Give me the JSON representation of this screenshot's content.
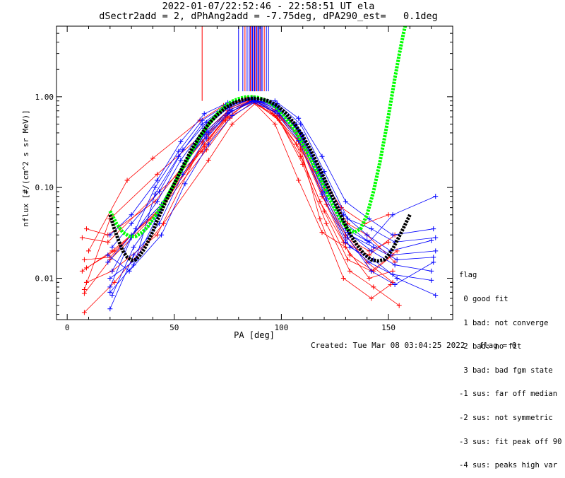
{
  "header": {
    "line1": "2022-01-07/22:52:46 - 22:58:51 UT ela",
    "line2": "dSectr2add = 2, dPhAng2add = -7.75deg, dPA290_est=   0.1deg"
  },
  "legend": {
    "title": "flag",
    "items": [
      " 0 good fit",
      " 1 bad: not converge",
      " 2 bad: no fit",
      " 3 bad: bad fgm state",
      "-1 sus: far off median",
      "-2 sus: not symmetric",
      "-3 sus: fit peak off 90",
      "-4 sus: peaks high var"
    ]
  },
  "footer": {
    "created": "Created: Tue Mar 08 03:04:25 2022",
    "flag": "flag = 0"
  },
  "colors": {
    "red": "#ff0000",
    "blue": "#0000ff",
    "green": "#00ff00",
    "black": "#000000"
  },
  "chart_data": {
    "type": "line",
    "xlabel": "PA [deg]",
    "ylabel": "nflux [#/(cm^2 s sr MeV)]",
    "xlim": [
      -5,
      180
    ],
    "ylim": [
      0.0035,
      6.0
    ],
    "ylog": true,
    "xticks": [
      0,
      50,
      100,
      150
    ],
    "xtick_labels": [
      "0",
      "50",
      "100",
      "150"
    ],
    "yticks": [
      0.01,
      0.1,
      1.0
    ],
    "ytick_labels": [
      "0.01",
      "0.10",
      "1.00"
    ],
    "spike_markers_pa": [
      63,
      80,
      82,
      83,
      84,
      85,
      85.5,
      86,
      86.5,
      87,
      87.5,
      88,
      88.5,
      89,
      89.5,
      90,
      90.5,
      91,
      92,
      93,
      94
    ],
    "series": [
      {
        "color": "red",
        "x": [
          8,
          20,
          42,
          64,
          75,
          86,
          97,
          108,
          119,
          130,
          140,
          152
        ],
        "y": [
          0.0075,
          0.045,
          0.14,
          0.4,
          0.7,
          0.93,
          0.72,
          0.35,
          0.09,
          0.03,
          0.015,
          0.009
        ]
      },
      {
        "color": "red",
        "x": [
          9,
          19,
          41,
          63,
          74,
          85,
          96,
          107,
          118,
          129,
          141,
          153
        ],
        "y": [
          0.035,
          0.03,
          0.07,
          0.32,
          0.62,
          0.9,
          0.65,
          0.3,
          0.07,
          0.025,
          0.018,
          0.03
        ]
      },
      {
        "color": "red",
        "x": [
          7,
          21,
          43,
          65,
          76,
          87,
          98,
          109,
          120,
          131,
          142,
          154
        ],
        "y": [
          0.012,
          0.02,
          0.055,
          0.26,
          0.58,
          0.88,
          0.6,
          0.22,
          0.055,
          0.016,
          0.012,
          0.02
        ]
      },
      {
        "color": "red",
        "x": [
          8,
          22,
          45,
          66,
          77,
          88,
          99,
          110,
          121,
          132,
          143,
          155
        ],
        "y": [
          0.0042,
          0.009,
          0.04,
          0.2,
          0.5,
          0.85,
          0.55,
          0.18,
          0.04,
          0.012,
          0.008,
          0.005
        ]
      },
      {
        "color": "red",
        "x": [
          10,
          28,
          40,
          62,
          73,
          84,
          95,
          106,
          117,
          128,
          139,
          150
        ],
        "y": [
          0.02,
          0.12,
          0.21,
          0.55,
          0.8,
          0.95,
          0.85,
          0.5,
          0.15,
          0.06,
          0.04,
          0.05
        ]
      },
      {
        "color": "red",
        "x": [
          8,
          20,
          44,
          64,
          75,
          86,
          97,
          108,
          119,
          130,
          141,
          152
        ],
        "y": [
          0.016,
          0.017,
          0.065,
          0.3,
          0.6,
          0.92,
          0.5,
          0.12,
          0.032,
          0.022,
          0.01,
          0.012
        ]
      },
      {
        "color": "red",
        "x": [
          9,
          21,
          42,
          65,
          76,
          87,
          98,
          109,
          120,
          131,
          140,
          153
        ],
        "y": [
          0.009,
          0.012,
          0.03,
          0.38,
          0.75,
          0.97,
          0.6,
          0.26,
          0.1,
          0.04,
          0.03,
          0.015
        ]
      },
      {
        "color": "red",
        "x": [
          7,
          19,
          43,
          63,
          74,
          85,
          96,
          107,
          118,
          129,
          142,
          151
        ],
        "y": [
          0.028,
          0.025,
          0.09,
          0.25,
          0.55,
          0.91,
          0.7,
          0.4,
          0.045,
          0.01,
          0.006,
          0.0085
        ]
      },
      {
        "color": "red",
        "x": [
          8,
          20,
          41,
          64,
          75,
          86,
          97,
          108,
          119,
          130,
          141,
          150
        ],
        "y": [
          0.0068,
          0.016,
          0.05,
          0.28,
          0.65,
          0.92,
          0.62,
          0.32,
          0.08,
          0.028,
          0.02,
          0.025
        ]
      },
      {
        "color": "red",
        "x": [
          9,
          22,
          44,
          66,
          77,
          88,
          99,
          110,
          121,
          132,
          143,
          152
        ],
        "y": [
          0.013,
          0.02,
          0.06,
          0.35,
          0.7,
          0.9,
          0.62,
          0.28,
          0.065,
          0.018,
          0.012,
          0.018
        ]
      },
      {
        "color": "blue",
        "x": [
          20,
          30,
          42,
          53,
          64,
          75,
          86,
          97,
          108,
          119,
          130,
          141,
          152,
          172
        ],
        "y": [
          0.008,
          0.028,
          0.07,
          0.2,
          0.45,
          0.75,
          0.95,
          0.8,
          0.42,
          0.12,
          0.035,
          0.025,
          0.05,
          0.08
        ]
      },
      {
        "color": "blue",
        "x": [
          20,
          31,
          43,
          54,
          65,
          76,
          87,
          98,
          109,
          120,
          131,
          142,
          153,
          171
        ],
        "y": [
          0.0046,
          0.018,
          0.04,
          0.14,
          0.35,
          0.68,
          0.9,
          0.7,
          0.35,
          0.09,
          0.028,
          0.012,
          0.0085,
          0.015
        ]
      },
      {
        "color": "blue",
        "x": [
          21,
          32,
          41,
          52,
          63,
          74,
          85,
          96,
          107,
          118,
          129,
          140,
          151,
          170
        ],
        "y": [
          0.012,
          0.035,
          0.1,
          0.25,
          0.55,
          0.8,
          0.93,
          0.85,
          0.5,
          0.16,
          0.05,
          0.03,
          0.02,
          0.026
        ]
      },
      {
        "color": "blue",
        "x": [
          19,
          29,
          44,
          55,
          66,
          77,
          88,
          99,
          110,
          121,
          132,
          143,
          154,
          172
        ],
        "y": [
          0.018,
          0.012,
          0.03,
          0.11,
          0.3,
          0.62,
          0.88,
          0.65,
          0.3,
          0.075,
          0.022,
          0.016,
          0.01,
          0.0065
        ]
      },
      {
        "color": "blue",
        "x": [
          20,
          30,
          42,
          53,
          64,
          75,
          86,
          97,
          108,
          119,
          130,
          141,
          152,
          171
        ],
        "y": [
          0.03,
          0.05,
          0.12,
          0.32,
          0.65,
          0.86,
          0.97,
          0.9,
          0.58,
          0.22,
          0.07,
          0.045,
          0.03,
          0.035
        ]
      },
      {
        "color": "blue",
        "x": [
          21,
          31,
          43,
          54,
          65,
          76,
          87,
          98,
          109,
          120,
          131,
          142,
          153,
          170
        ],
        "y": [
          0.0065,
          0.022,
          0.055,
          0.17,
          0.42,
          0.72,
          0.92,
          0.76,
          0.4,
          0.11,
          0.032,
          0.02,
          0.014,
          0.012
        ]
      },
      {
        "color": "blue",
        "x": [
          20,
          32,
          41,
          52,
          63,
          74,
          85,
          96,
          107,
          118,
          129,
          140,
          151,
          172
        ],
        "y": [
          0.01,
          0.016,
          0.085,
          0.22,
          0.5,
          0.78,
          0.94,
          0.82,
          0.46,
          0.14,
          0.042,
          0.026,
          0.018,
          0.02
        ]
      },
      {
        "color": "blue",
        "x": [
          19,
          30,
          44,
          55,
          66,
          77,
          88,
          99,
          110,
          121,
          132,
          143,
          154,
          171
        ],
        "y": [
          0.015,
          0.03,
          0.065,
          0.19,
          0.4,
          0.7,
          0.9,
          0.72,
          0.38,
          0.1,
          0.03,
          0.022,
          0.016,
          0.017
        ]
      },
      {
        "color": "blue",
        "x": [
          20,
          31,
          42,
          53,
          64,
          75,
          86,
          97,
          108,
          119,
          130,
          141,
          152,
          170
        ],
        "y": [
          0.007,
          0.014,
          0.048,
          0.15,
          0.38,
          0.66,
          0.89,
          0.68,
          0.33,
          0.085,
          0.025,
          0.015,
          0.011,
          0.0095
        ]
      },
      {
        "color": "blue",
        "x": [
          21,
          30,
          43,
          54,
          65,
          76,
          87,
          98,
          109,
          120,
          131,
          142,
          153,
          172
        ],
        "y": [
          0.022,
          0.04,
          0.09,
          0.26,
          0.52,
          0.8,
          0.96,
          0.84,
          0.5,
          0.15,
          0.045,
          0.035,
          0.025,
          0.028
        ]
      }
    ],
    "fits": [
      {
        "name": "",
        "color": "green",
        "x": [
          20,
          23,
          26,
          29,
          32,
          35,
          38,
          41,
          44,
          47,
          50,
          53,
          56,
          59,
          62,
          65,
          68,
          71,
          74,
          77,
          80,
          83,
          86,
          89,
          92,
          95,
          98,
          101,
          104,
          107,
          110,
          113,
          116,
          119,
          122,
          125,
          128,
          131,
          134,
          137,
          140,
          143,
          146,
          149,
          151,
          153,
          155,
          157,
          159,
          161,
          163
        ],
        "y": [
          0.055,
          0.04,
          0.032,
          0.029,
          0.029,
          0.032,
          0.038,
          0.048,
          0.062,
          0.082,
          0.11,
          0.15,
          0.2,
          0.27,
          0.36,
          0.46,
          0.57,
          0.69,
          0.8,
          0.89,
          0.95,
          0.99,
          1.0,
          0.98,
          0.93,
          0.85,
          0.75,
          0.63,
          0.51,
          0.4,
          0.3,
          0.22,
          0.16,
          0.115,
          0.08,
          0.058,
          0.043,
          0.035,
          0.032,
          0.035,
          0.05,
          0.09,
          0.19,
          0.45,
          0.85,
          1.6,
          2.9,
          5.0,
          8.0,
          13.0,
          20.0
        ]
      },
      {
        "name": "",
        "color": "black",
        "x": [
          20,
          22,
          24,
          26,
          28,
          30,
          32,
          34,
          36,
          38,
          40,
          42,
          44,
          46,
          48,
          50,
          54,
          58,
          62,
          66,
          70,
          74,
          78,
          82,
          86,
          90,
          94,
          98,
          102,
          106,
          110,
          114,
          118,
          122,
          126,
          130,
          133,
          136,
          139,
          142,
          145,
          148,
          150,
          152,
          154,
          156,
          158,
          160
        ],
        "y": [
          0.05,
          0.035,
          0.026,
          0.02,
          0.017,
          0.0158,
          0.016,
          0.018,
          0.021,
          0.026,
          0.033,
          0.043,
          0.055,
          0.07,
          0.088,
          0.11,
          0.17,
          0.26,
          0.37,
          0.5,
          0.63,
          0.76,
          0.86,
          0.93,
          0.96,
          0.95,
          0.9,
          0.8,
          0.66,
          0.51,
          0.37,
          0.25,
          0.16,
          0.1,
          0.062,
          0.038,
          0.028,
          0.022,
          0.018,
          0.016,
          0.0155,
          0.016,
          0.018,
          0.021,
          0.026,
          0.032,
          0.04,
          0.05
        ]
      }
    ]
  }
}
